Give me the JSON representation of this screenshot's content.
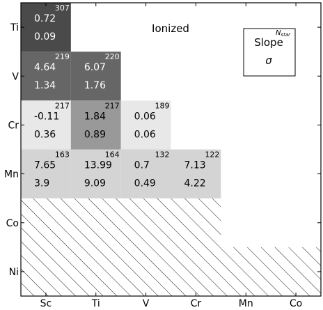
{
  "chart_data": {
    "type": "heatmap",
    "title": "Ionized",
    "x_categories": [
      "Sc",
      "Ti",
      "V",
      "Cr",
      "Mn",
      "Co"
    ],
    "y_categories": [
      "Ti",
      "V",
      "Cr",
      "Mn",
      "Co",
      "Ni"
    ],
    "grid": false,
    "legend": {
      "placement": "top-right",
      "n_label_main": "N",
      "n_label_sub": "star",
      "slope_label": "Slope",
      "sigma_label": "σ"
    },
    "cells": [
      {
        "row": "Ti",
        "col": "Sc",
        "slope": "0.72",
        "sigma": "0.09",
        "n_star": "307",
        "gray": 0.29
      },
      {
        "row": "V",
        "col": "Sc",
        "slope": "4.64",
        "sigma": "1.34",
        "n_star": "219",
        "gray": 0.4
      },
      {
        "row": "V",
        "col": "Ti",
        "slope": "6.07",
        "sigma": "1.76",
        "n_star": "220",
        "gray": 0.4
      },
      {
        "row": "Cr",
        "col": "Sc",
        "slope": "-0.11",
        "sigma": "0.36",
        "n_star": "217",
        "gray": 0.91
      },
      {
        "row": "Cr",
        "col": "Ti",
        "slope": "1.84",
        "sigma": "0.89",
        "n_star": "217",
        "gray": 0.6
      },
      {
        "row": "Cr",
        "col": "V",
        "slope": "0.06",
        "sigma": "0.06",
        "n_star": "189",
        "gray": 0.91
      },
      {
        "row": "Mn",
        "col": "Sc",
        "slope": "7.65",
        "sigma": "3.9",
        "n_star": "163",
        "gray": 0.83
      },
      {
        "row": "Mn",
        "col": "Ti",
        "slope": "13.99",
        "sigma": "9.09",
        "n_star": "164",
        "gray": 0.83
      },
      {
        "row": "Mn",
        "col": "V",
        "slope": "0.7",
        "sigma": "0.49",
        "n_star": "132",
        "gray": 0.83
      },
      {
        "row": "Mn",
        "col": "Cr",
        "slope": "7.13",
        "sigma": "4.22",
        "n_star": "122",
        "gray": 0.83
      }
    ],
    "hatched_region": "lower-left (Co, Ni rows)"
  }
}
